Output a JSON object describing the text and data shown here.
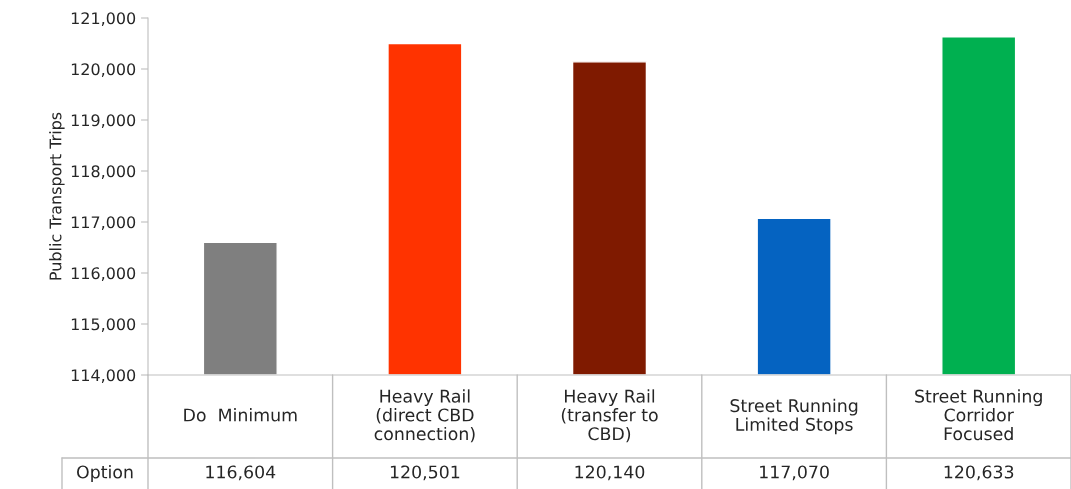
{
  "chart_data": {
    "type": "bar",
    "ylabel": "Public Transport Trips",
    "categories": [
      "Do  Minimum",
      "Heavy Rail\n(direct CBD\nconnection)",
      "Heavy Rail\n(transfer to\nCBD)",
      "Street Running\nLimited Stops",
      "Street Running\nCorridor\nFocused"
    ],
    "series": [
      {
        "name": "Option",
        "colors": [
          "#7f7f7f",
          "#ff3300",
          "#7f1a00",
          "#0563c1",
          "#00b050"
        ],
        "values": [
          116604,
          120501,
          120140,
          117070,
          120633
        ],
        "value_labels": [
          "116,604",
          "120,501",
          "120,140",
          "117,070",
          "120,633"
        ]
      }
    ],
    "ylim": [
      114000,
      121000
    ],
    "yticks": [
      {
        "value": 114000,
        "label": "114,000"
      },
      {
        "value": 115000,
        "label": "115,000"
      },
      {
        "value": 116000,
        "label": "116,000"
      },
      {
        "value": 117000,
        "label": "117,000"
      },
      {
        "value": 118000,
        "label": "118,000"
      },
      {
        "value": 119000,
        "label": "119,000"
      },
      {
        "value": 120000,
        "label": "120,000"
      },
      {
        "value": 121000,
        "label": "121,000"
      }
    ],
    "grid": false,
    "legend": false
  }
}
